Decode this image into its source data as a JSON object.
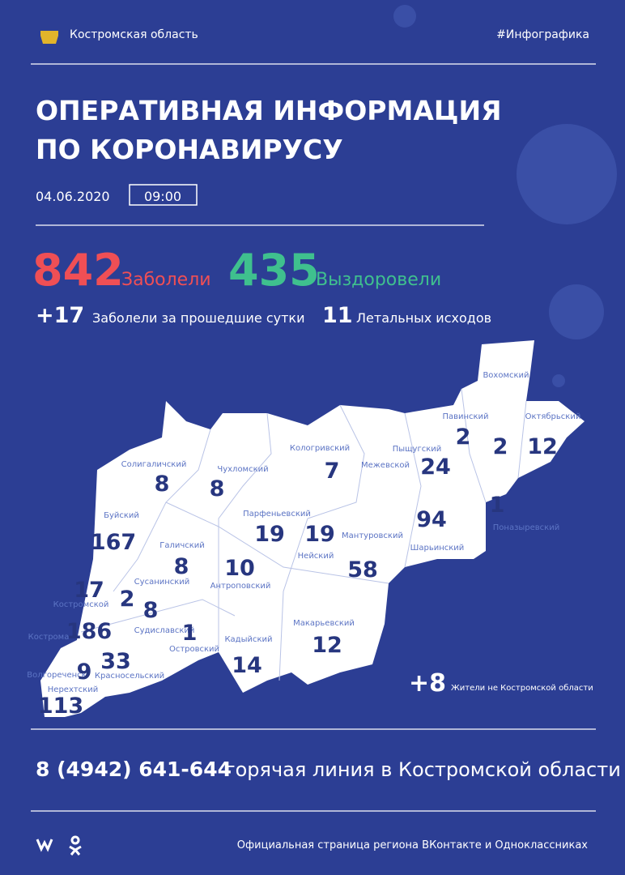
{
  "header": {
    "region": "Костромская область",
    "hashtag": "#Инфографика"
  },
  "title": {
    "line1": "ОПЕРАТИВНАЯ ИНФОРМАЦИЯ",
    "line2": "ПО КОРОНАВИРУСУ"
  },
  "date": "04.06.2020",
  "time": "09:00",
  "stats": {
    "cases": {
      "value": "842",
      "label": "Заболели"
    },
    "recovered": {
      "value": "435",
      "label": "Выздоровели"
    },
    "new_cases": {
      "value": "+17",
      "label": "Заболели за прошедшие сутки"
    },
    "deaths": {
      "value": "11",
      "label": "Летальных исходов"
    }
  },
  "map": {
    "districts": [
      {
        "name": "Солигаличский",
        "count": "8"
      },
      {
        "name": "Чухломский",
        "count": "8"
      },
      {
        "name": "Кологривский",
        "count": "7"
      },
      {
        "name": "Межевской"
      },
      {
        "name": "Пыщугский",
        "count": "24"
      },
      {
        "name": "Павинский",
        "count": "2"
      },
      {
        "name": "Вохомский",
        "count": "2"
      },
      {
        "name": "Октябрьский",
        "count": "12"
      },
      {
        "name": "Поназыревский",
        "count": "1"
      },
      {
        "name": "Шарьинский",
        "count": "94"
      },
      {
        "name": "Мантуровский",
        "count": "58"
      },
      {
        "name": "Нейский",
        "count": "19"
      },
      {
        "name": "Парфеньевский",
        "count": "19"
      },
      {
        "name": "Антроповский",
        "count": "10"
      },
      {
        "name": "Галичский",
        "count": "8"
      },
      {
        "name": "Буйский",
        "count": "167"
      },
      {
        "name": "Сусанинский",
        "count": "2"
      },
      {
        "name": "Костромской",
        "count": "17"
      },
      {
        "name": "Судиславский",
        "count": "8"
      },
      {
        "name": "Островский",
        "count": "1"
      },
      {
        "name": "Кадыйский",
        "count": "14"
      },
      {
        "name": "Макарьевский",
        "count": "12"
      },
      {
        "name": "Кострома",
        "count": "186"
      },
      {
        "name": "Красносельский",
        "count": "33"
      },
      {
        "name": "Волгореченск",
        "count": "9"
      },
      {
        "name": "Нерехтский",
        "count": "113"
      }
    ],
    "outside": {
      "value": "+8",
      "label": "Жители не Костромской области"
    }
  },
  "hotline": {
    "phone": "8 (4942) 641-644",
    "label": "горячая линия в Костромской области"
  },
  "footer": "Официальная страница региона ВКонтакте и Одноклассниках"
}
